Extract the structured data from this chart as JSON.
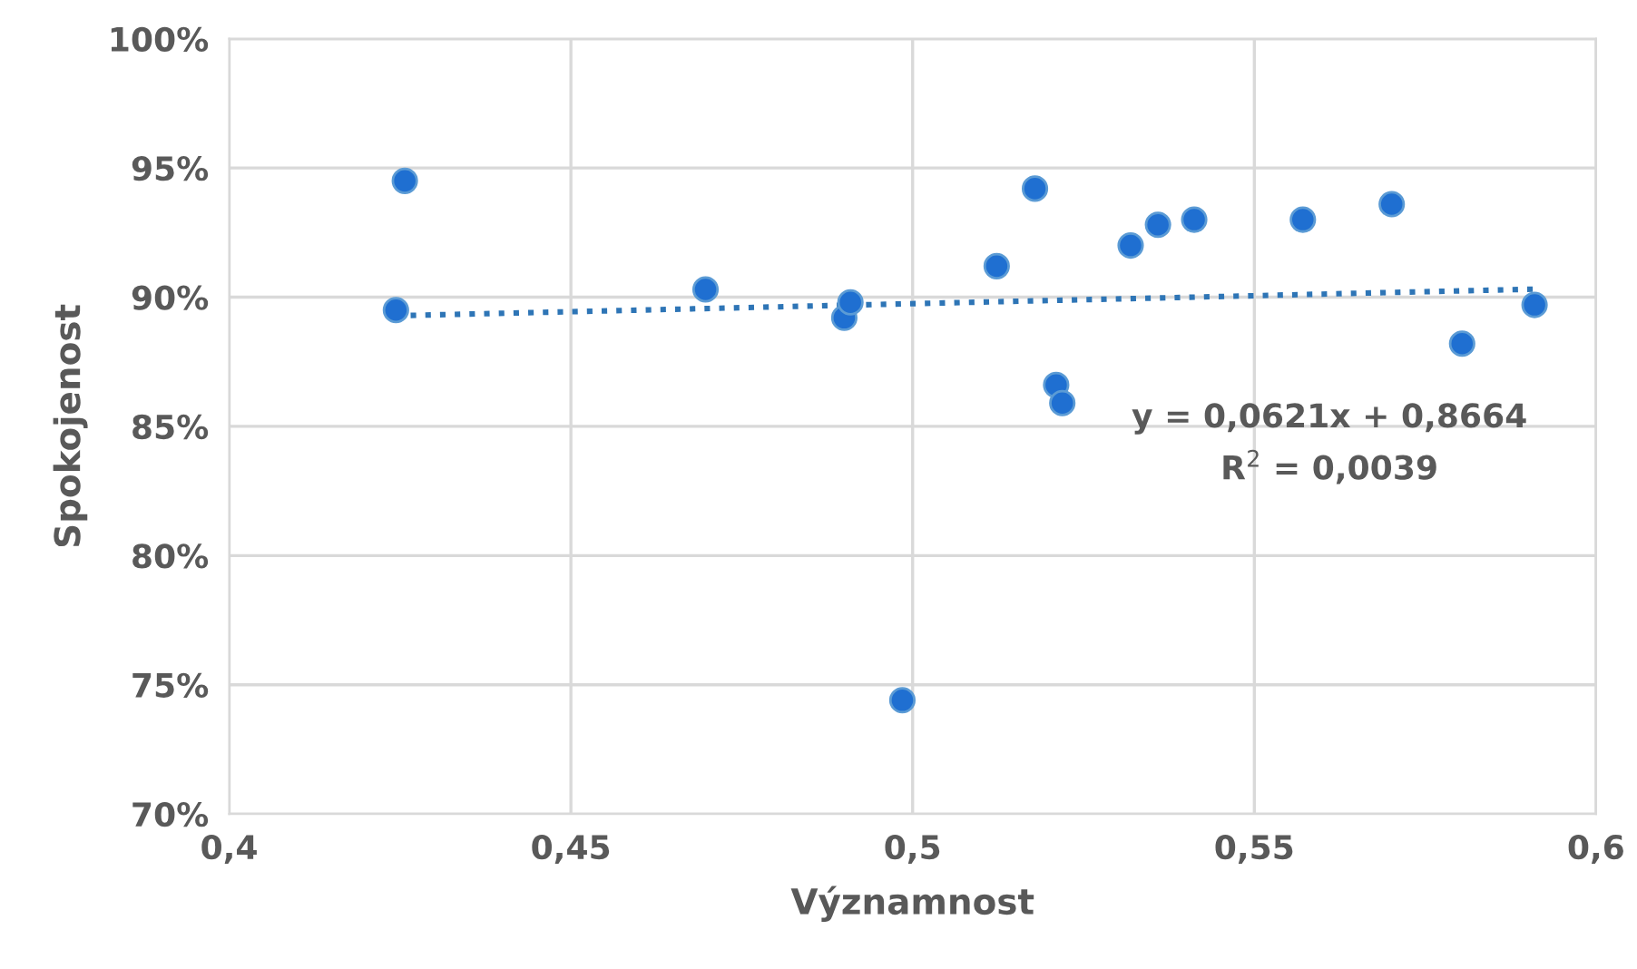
{
  "chart_data": {
    "type": "scatter",
    "xlabel": "Významnost",
    "ylabel": "Spokojenost",
    "xlim": [
      0.4,
      0.6
    ],
    "xticks": [
      {
        "value": 0.4,
        "label": "0,4"
      },
      {
        "value": 0.45,
        "label": "0,45"
      },
      {
        "value": 0.5,
        "label": "0,5"
      },
      {
        "value": 0.55,
        "label": "0,55"
      },
      {
        "value": 0.6,
        "label": "0,6"
      }
    ],
    "ylim": [
      70,
      100
    ],
    "yticks": [
      {
        "value": 70,
        "label": "70%"
      },
      {
        "value": 75,
        "label": "75%"
      },
      {
        "value": 80,
        "label": "80%"
      },
      {
        "value": 85,
        "label": "85%"
      },
      {
        "value": 90,
        "label": "90%"
      },
      {
        "value": 95,
        "label": "95%"
      },
      {
        "value": 100,
        "label": "100%"
      }
    ],
    "grid": true,
    "marker": "circle",
    "series": [
      {
        "color": "#1f6fd1",
        "x": [
          0.4257,
          0.4244,
          0.4697,
          0.49,
          0.4909,
          0.4985,
          0.5123,
          0.5179,
          0.521,
          0.5219,
          0.5319,
          0.5359,
          0.5412,
          0.5571,
          0.5701,
          0.5804,
          0.591
        ],
        "values": [
          94.5,
          89.5,
          90.3,
          89.2,
          89.8,
          74.4,
          91.2,
          94.2,
          86.6,
          85.9,
          92.0,
          92.8,
          93.0,
          93.0,
          93.6,
          88.2,
          89.7
        ]
      },
      {
        "type": "line",
        "color": "#2e75b6",
        "line_style": "dotted",
        "marker": "none",
        "x": [
          0.4244,
          0.591
        ],
        "values": [
          89.28,
          90.31
        ]
      }
    ],
    "annotations": [
      "y = 0,0621x + 0,8664",
      "R$^{2}$ = 0,0039"
    ]
  }
}
